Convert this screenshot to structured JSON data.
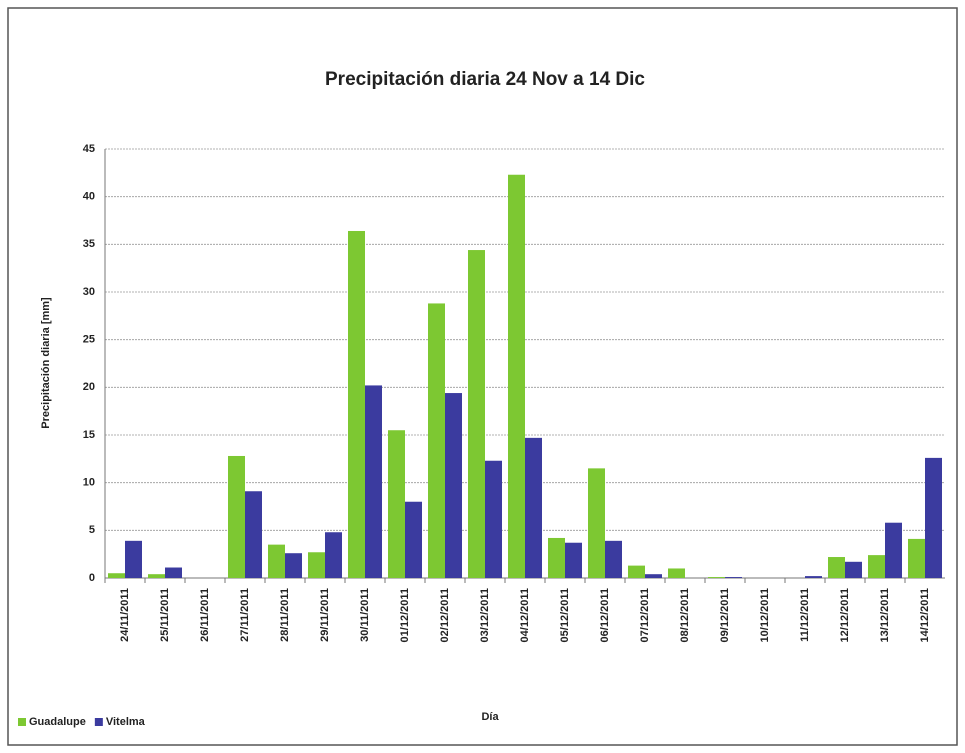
{
  "chart_data": {
    "type": "bar",
    "title": "Precipitación diaria 24 Nov a 14 Dic",
    "x_label": "Día",
    "y_label": "Precipitación diaria [mm]",
    "categories": [
      "24/11/2011",
      "25/11/2011",
      "26/11/2011",
      "27/11/2011",
      "28/11/2011",
      "29/11/2011",
      "30/11/2011",
      "01/12/2011",
      "02/12/2011",
      "03/12/2011",
      "04/12/2011",
      "05/12/2011",
      "06/12/2011",
      "07/12/2011",
      "08/12/2011",
      "09/12/2011",
      "10/12/2011",
      "11/12/2011",
      "12/12/2011",
      "13/12/2011",
      "14/12/2011"
    ],
    "series": [
      {
        "name": "Guadalupe",
        "color": "#7dc832",
        "values": [
          0.5,
          0.4,
          0,
          12.8,
          3.5,
          2.7,
          36.4,
          15.5,
          28.8,
          34.4,
          42.3,
          4.2,
          11.5,
          1.3,
          1.0,
          0.1,
          0,
          0,
          2.2,
          2.4,
          4.1
        ]
      },
      {
        "name": "Vitelma",
        "color": "#3b3b9f",
        "values": [
          3.9,
          1.1,
          0,
          9.1,
          2.6,
          4.8,
          20.2,
          8.0,
          19.4,
          12.3,
          14.7,
          3.7,
          3.9,
          0.4,
          0,
          0.1,
          0,
          0.2,
          1.7,
          5.8,
          12.6
        ]
      }
    ],
    "ylim": [
      0,
      45
    ],
    "yticks": [
      0,
      5,
      10,
      15,
      20,
      25,
      30,
      35,
      40,
      45
    ],
    "grid": true,
    "legend": "bottom-left"
  }
}
